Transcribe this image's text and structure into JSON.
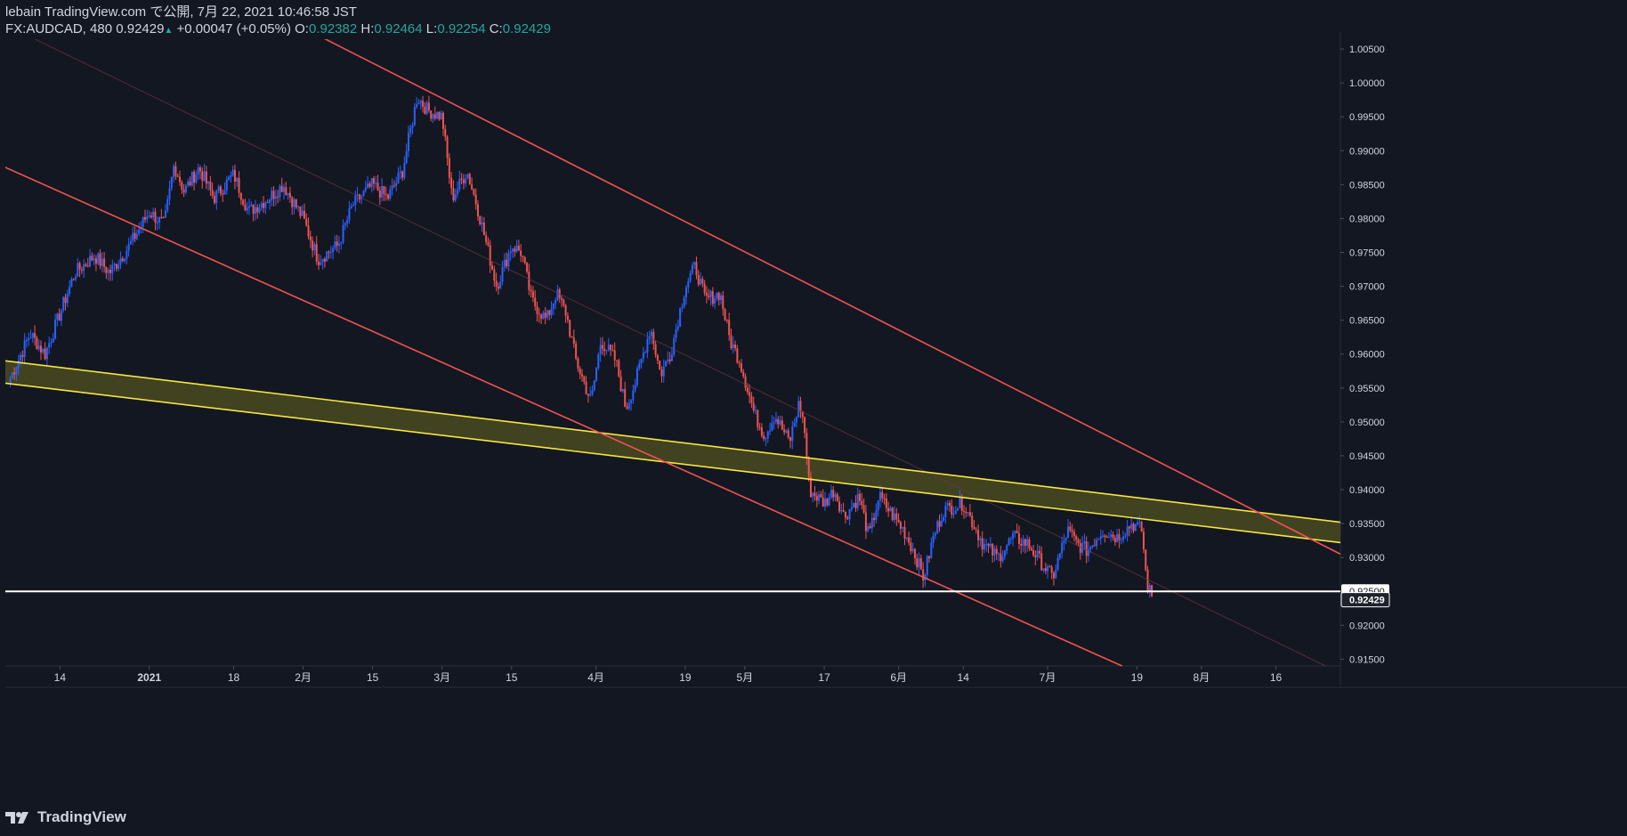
{
  "header": {
    "line1": "lebain TradingView.com で公開, 7月 22, 2021 10:46:58 JST",
    "symbol": "FX:AUDCAD, 480",
    "last": "0.92429",
    "arrow": "▲",
    "change": "+0.00047 (+0.05%)",
    "o_label": "O:",
    "o_value": "0.92382",
    "h_label": "H:",
    "h_value": "0.92464",
    "l_label": "L:",
    "l_value": "0.92254",
    "c_label": "C:",
    "c_value": "0.92429"
  },
  "footer": {
    "brand": "TradingView",
    "icon": "tradingview-logo-icon"
  },
  "colors": {
    "background": "#131722",
    "up": "#2962ff",
    "down": "#ef5350",
    "channel": "#f05350",
    "band_line": "#f5e642",
    "band_fill": "#4a4a20",
    "hline": "#ffffff",
    "axis_text": "#d1d4dc"
  },
  "chart_data": {
    "type": "candlestick",
    "symbol": "FX:AUDCAD",
    "interval": "480",
    "ylim": [
      0.914,
      1.0075
    ],
    "y_ticks": [
      "1.00500",
      "1.00000",
      "0.99500",
      "0.99000",
      "0.98500",
      "0.98000",
      "0.97500",
      "0.97000",
      "0.96500",
      "0.96000",
      "0.95500",
      "0.95000",
      "0.94500",
      "0.94000",
      "0.93500",
      "0.93000",
      "0.92500",
      "0.92000",
      "0.91500"
    ],
    "x_ticks": [
      "14",
      "2021",
      "18",
      "2月",
      "15",
      "3月",
      "15",
      "4月",
      "19",
      "5月",
      "17",
      "6月",
      "14",
      "7月",
      "19",
      "8月",
      "16"
    ],
    "x_tick_dates": [
      "2020-12-14",
      "2021-01-01",
      "2021-01-18",
      "2021-02-01",
      "2021-02-15",
      "2021-03-01",
      "2021-03-15",
      "2021-04-01",
      "2021-04-19",
      "2021-05-01",
      "2021-05-17",
      "2021-06-01",
      "2021-06-14",
      "2021-07-01",
      "2021-07-19",
      "2021-08-01",
      "2021-08-16"
    ],
    "price_path": [
      [
        "2020-12-04",
        0.9565
      ],
      [
        "2020-12-08",
        0.963
      ],
      [
        "2020-12-11",
        0.96
      ],
      [
        "2020-12-14",
        0.966
      ],
      [
        "2020-12-17",
        0.972
      ],
      [
        "2020-12-21",
        0.9745
      ],
      [
        "2020-12-24",
        0.972
      ],
      [
        "2020-12-28",
        0.976
      ],
      [
        "2021-01-01",
        0.981
      ],
      [
        "2021-01-04",
        0.979
      ],
      [
        "2021-01-06",
        0.988
      ],
      [
        "2021-01-08",
        0.984
      ],
      [
        "2021-01-11",
        0.9875
      ],
      [
        "2021-01-14",
        0.983
      ],
      [
        "2021-01-18",
        0.9865
      ],
      [
        "2021-01-21",
        0.981
      ],
      [
        "2021-01-25",
        0.983
      ],
      [
        "2021-01-28",
        0.985
      ],
      [
        "2021-02-01",
        0.98
      ],
      [
        "2021-02-04",
        0.974
      ],
      [
        "2021-02-08",
        0.976
      ],
      [
        "2021-02-11",
        0.982
      ],
      [
        "2021-02-15",
        0.985
      ],
      [
        "2021-02-18",
        0.983
      ],
      [
        "2021-02-21",
        0.987
      ],
      [
        "2021-02-24",
        0.998
      ],
      [
        "2021-02-26",
        0.996
      ],
      [
        "2021-03-01",
        0.995
      ],
      [
        "2021-03-03",
        0.983
      ],
      [
        "2021-03-06",
        0.987
      ],
      [
        "2021-03-08",
        0.982
      ],
      [
        "2021-03-10",
        0.976
      ],
      [
        "2021-03-12",
        0.97
      ],
      [
        "2021-03-15",
        0.976
      ],
      [
        "2021-03-17",
        0.975
      ],
      [
        "2021-03-19",
        0.968
      ],
      [
        "2021-03-22",
        0.965
      ],
      [
        "2021-03-24",
        0.969
      ],
      [
        "2021-03-26",
        0.966
      ],
      [
        "2021-03-28",
        0.959
      ],
      [
        "2021-03-31",
        0.953
      ],
      [
        "2021-04-02",
        0.962
      ],
      [
        "2021-04-05",
        0.959
      ],
      [
        "2021-04-07",
        0.952
      ],
      [
        "2021-04-09",
        0.956
      ],
      [
        "2021-04-12",
        0.964
      ],
      [
        "2021-04-14",
        0.957
      ],
      [
        "2021-04-16",
        0.96
      ],
      [
        "2021-04-19",
        0.97
      ],
      [
        "2021-04-21",
        0.973
      ],
      [
        "2021-04-23",
        0.968
      ],
      [
        "2021-04-26",
        0.969
      ],
      [
        "2021-04-28",
        0.962
      ],
      [
        "2021-04-30",
        0.959
      ],
      [
        "2021-05-03",
        0.951
      ],
      [
        "2021-05-05",
        0.948
      ],
      [
        "2021-05-07",
        0.951
      ],
      [
        "2021-05-10",
        0.947
      ],
      [
        "2021-05-12",
        0.953
      ],
      [
        "2021-05-13",
        0.949
      ],
      [
        "2021-05-14",
        0.94
      ],
      [
        "2021-05-17",
        0.938
      ],
      [
        "2021-05-19",
        0.94
      ],
      [
        "2021-05-21",
        0.936
      ],
      [
        "2021-05-24",
        0.939
      ],
      [
        "2021-05-26",
        0.933
      ],
      [
        "2021-05-28",
        0.939
      ],
      [
        "2021-05-31",
        0.936
      ],
      [
        "2021-06-02",
        0.934
      ],
      [
        "2021-06-04",
        0.931
      ],
      [
        "2021-06-06",
        0.927
      ],
      [
        "2021-06-08",
        0.933
      ],
      [
        "2021-06-10",
        0.937
      ],
      [
        "2021-06-14",
        0.938
      ],
      [
        "2021-06-16",
        0.935
      ],
      [
        "2021-06-18",
        0.932
      ],
      [
        "2021-06-21",
        0.93
      ],
      [
        "2021-06-24",
        0.933
      ],
      [
        "2021-06-27",
        0.932
      ],
      [
        "2021-06-30",
        0.929
      ],
      [
        "2021-07-02",
        0.927
      ],
      [
        "2021-07-05",
        0.934
      ],
      [
        "2021-07-07",
        0.932
      ],
      [
        "2021-07-09",
        0.931
      ],
      [
        "2021-07-12",
        0.934
      ],
      [
        "2021-07-15",
        0.933
      ],
      [
        "2021-07-18",
        0.935
      ],
      [
        "2021-07-20",
        0.934
      ],
      [
        "2021-07-21",
        0.926
      ],
      [
        "2021-07-22",
        0.9243
      ]
    ],
    "channel_upper": [
      [
        "2021-01-31",
        1.0085
      ],
      [
        "2021-08-29",
        0.9305
      ]
    ],
    "channel_lower": [
      [
        "2020-11-27",
        0.9895
      ],
      [
        "2021-07-16",
        0.914
      ]
    ],
    "midline": [
      [
        "2020-12-06",
        1.0075
      ],
      [
        "2021-08-26",
        0.914
      ]
    ],
    "support_band": {
      "top": [
        [
          "2020-12-03",
          0.959
        ],
        [
          "2021-08-29",
          0.9352
        ]
      ],
      "bottom": [
        [
          "2020-12-03",
          0.9557
        ],
        [
          "2021-08-29",
          0.9322
        ]
      ]
    },
    "horizontal_line": 0.925,
    "price_labels": [
      {
        "label": "0.92500",
        "style": "light"
      },
      {
        "label": "0.92429",
        "style": "dark"
      }
    ]
  }
}
